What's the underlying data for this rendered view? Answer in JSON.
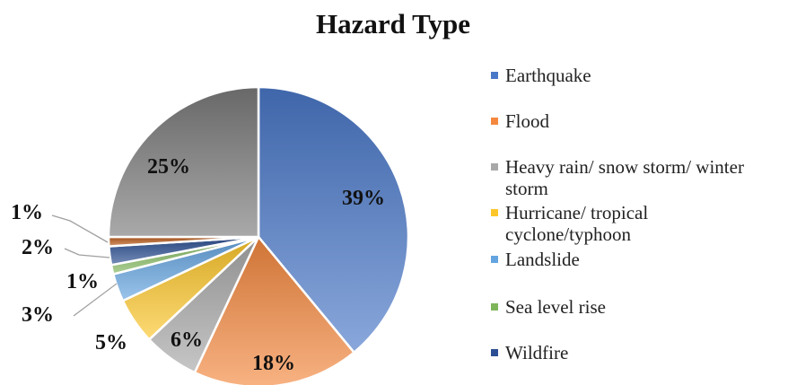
{
  "chart_data": {
    "type": "pie",
    "title": "Hazard Type",
    "legend_position": "right",
    "slices": [
      {
        "name": "Earthquake",
        "label": "39%",
        "value": 39,
        "color": "#4a78c8"
      },
      {
        "name": "Flood",
        "label": "18%",
        "value": 18,
        "color": "#f4883f"
      },
      {
        "name": "Heavy rain/ snow storm/ winter storm",
        "legend_lines": [
          "Heavy rain/ snow storm/ winter",
          "storm"
        ],
        "label": "6%",
        "value": 6,
        "color": "#a8a8a8"
      },
      {
        "name": "Hurricane/ tropical cyclone/typhoon",
        "legend_lines": [
          "Hurricane/ tropical",
          "cyclone/typhoon"
        ],
        "label": "5%",
        "value": 5,
        "color": "#fcc62a"
      },
      {
        "name": "Landslide",
        "label": "3%",
        "value": 3,
        "color": "#64a4e0"
      },
      {
        "name": "Sea level rise",
        "label": "1%",
        "value": 1,
        "color": "#7fb55a"
      },
      {
        "name": "Wildfire",
        "label": "2%",
        "value": 2,
        "color": "#2b4f92"
      },
      {
        "name": "",
        "label": "1%",
        "value": 1,
        "color": "#bd5e1d"
      },
      {
        "name": "",
        "label": "25%",
        "value": 25,
        "color": "#7a7a7a"
      }
    ]
  }
}
